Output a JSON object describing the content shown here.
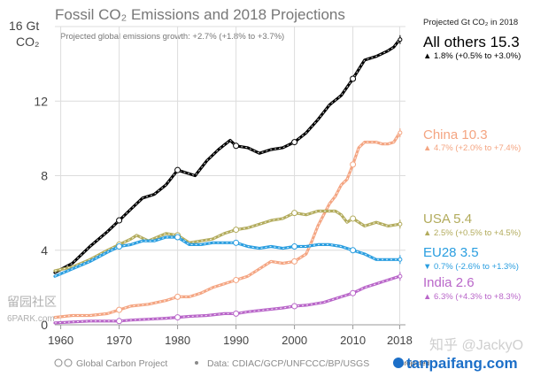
{
  "chart_data": {
    "type": "line",
    "title": "Fossil CO₂ Emissions and 2018 Projections",
    "subtitle": "Projected global emissions growth: +2.7% (+1.8% to +3.7%)",
    "ylabel_unit": "Gt",
    "ylabel_top": "16 Gt",
    "ylabel_sub": "CO₂",
    "ylim": [
      0,
      16
    ],
    "yticks": [
      0,
      4,
      8,
      12,
      16
    ],
    "xlim": [
      1959,
      2019
    ],
    "xticks": [
      1960,
      1970,
      1980,
      1990,
      2000,
      2010,
      2018
    ],
    "x_last_tick_note": "projected",
    "grid": true,
    "legend_heading": "Projected Gt CO₂ in 2018",
    "series": [
      {
        "name": "All others 15.3",
        "growth": "1.8% (+0.5% to +3.0%)",
        "direction": "up",
        "color": "#000000",
        "marker_color": "#000000",
        "x": [
          1959,
          1962,
          1965,
          1968,
          1970,
          1972,
          1974,
          1976,
          1978,
          1980,
          1982,
          1983,
          1985,
          1987,
          1989,
          1990,
          1992,
          1994,
          1996,
          1998,
          2000,
          2002,
          2004,
          2006,
          2008,
          2010,
          2012,
          2014,
          2016,
          2017,
          2018
        ],
        "y": [
          2.8,
          3.3,
          4.2,
          5.0,
          5.6,
          6.2,
          6.8,
          7.0,
          7.5,
          8.3,
          8.1,
          8.0,
          8.8,
          9.4,
          9.9,
          9.6,
          9.5,
          9.2,
          9.4,
          9.5,
          9.8,
          10.3,
          11.0,
          11.8,
          12.3,
          13.2,
          14.2,
          14.4,
          14.7,
          14.9,
          15.3
        ],
        "projection": 15.3
      },
      {
        "name": "China 10.3",
        "growth": "4.7% (+2.0% to +7.4%)",
        "direction": "up",
        "color": "#f4a582",
        "marker_color": "#f4a582",
        "x": [
          1959,
          1962,
          1965,
          1968,
          1970,
          1972,
          1975,
          1978,
          1980,
          1982,
          1984,
          1986,
          1988,
          1990,
          1992,
          1994,
          1996,
          1998,
          2000,
          2002,
          2003,
          2004,
          2005,
          2006,
          2007,
          2008,
          2009,
          2010,
          2011,
          2012,
          2013,
          2014,
          2015,
          2016,
          2017,
          2018
        ],
        "y": [
          0.4,
          0.5,
          0.5,
          0.6,
          0.8,
          1.0,
          1.1,
          1.3,
          1.5,
          1.5,
          1.7,
          2.0,
          2.2,
          2.4,
          2.6,
          3.0,
          3.4,
          3.3,
          3.4,
          3.8,
          4.5,
          5.3,
          5.9,
          6.5,
          6.9,
          7.5,
          7.8,
          8.6,
          9.5,
          9.8,
          9.8,
          9.8,
          9.7,
          9.7,
          9.8,
          10.3
        ],
        "projection": 10.3
      },
      {
        "name": "USA 5.4",
        "growth": "2.5% (+0.5% to +4.5%)",
        "direction": "up",
        "color": "#b2ab5c",
        "marker_color": "#b2ab5c",
        "x": [
          1959,
          1962,
          1965,
          1968,
          1970,
          1972,
          1973,
          1975,
          1978,
          1980,
          1982,
          1984,
          1986,
          1988,
          1990,
          1992,
          1994,
          1996,
          1998,
          2000,
          2002,
          2004,
          2005,
          2007,
          2008,
          2009,
          2010,
          2012,
          2014,
          2016,
          2018
        ],
        "y": [
          2.9,
          3.1,
          3.5,
          4.0,
          4.3,
          4.6,
          4.8,
          4.5,
          4.9,
          4.8,
          4.4,
          4.5,
          4.6,
          4.9,
          5.1,
          5.2,
          5.4,
          5.6,
          5.7,
          6.0,
          5.9,
          6.1,
          6.1,
          6.1,
          5.9,
          5.5,
          5.7,
          5.3,
          5.5,
          5.3,
          5.4
        ],
        "projection": 5.4
      },
      {
        "name": "EU28 3.5",
        "growth": "0.7% (-2.6% to +1.3%)",
        "direction": "down",
        "color": "#2a9ee0",
        "marker_color": "#2a9ee0",
        "x": [
          1959,
          1962,
          1965,
          1968,
          1970,
          1972,
          1974,
          1976,
          1978,
          1980,
          1982,
          1984,
          1986,
          1988,
          1990,
          1992,
          1994,
          1996,
          1998,
          2000,
          2002,
          2004,
          2006,
          2008,
          2010,
          2012,
          2014,
          2016,
          2018
        ],
        "y": [
          2.6,
          3.0,
          3.4,
          3.9,
          4.2,
          4.3,
          4.5,
          4.5,
          4.7,
          4.7,
          4.3,
          4.3,
          4.4,
          4.4,
          4.4,
          4.2,
          4.1,
          4.2,
          4.1,
          4.2,
          4.2,
          4.3,
          4.3,
          4.2,
          4.0,
          3.8,
          3.5,
          3.5,
          3.5
        ],
        "projection": 3.5
      },
      {
        "name": "India 2.6",
        "growth": "6.3% (+4.3% to +8.3%)",
        "direction": "up",
        "color": "#b966c9",
        "marker_color": "#b966c9",
        "x": [
          1959,
          1962,
          1965,
          1968,
          1970,
          1972,
          1975,
          1978,
          1980,
          1982,
          1985,
          1988,
          1990,
          1992,
          1995,
          1998,
          2000,
          2002,
          2005,
          2008,
          2010,
          2012,
          2014,
          2016,
          2018
        ],
        "y": [
          0.1,
          0.15,
          0.2,
          0.2,
          0.2,
          0.25,
          0.3,
          0.35,
          0.4,
          0.45,
          0.5,
          0.6,
          0.6,
          0.7,
          0.8,
          0.9,
          1.0,
          1.05,
          1.2,
          1.5,
          1.7,
          2.0,
          2.2,
          2.4,
          2.6
        ],
        "projection": 2.6
      }
    ]
  },
  "footer": {
    "left": "Global Carbon Project",
    "right": "Data: CDIAC/GCP/UNFCCC/BP/USGS"
  },
  "watermarks": {
    "left_cn": "留园社区",
    "left_site": "6PARK.com",
    "right_zhihu": "知乎 @JackyO",
    "right_site": "tanpaifang.com"
  },
  "colors": {
    "grid": "#dcdcdc",
    "text": "#444444",
    "title": "#777777"
  }
}
